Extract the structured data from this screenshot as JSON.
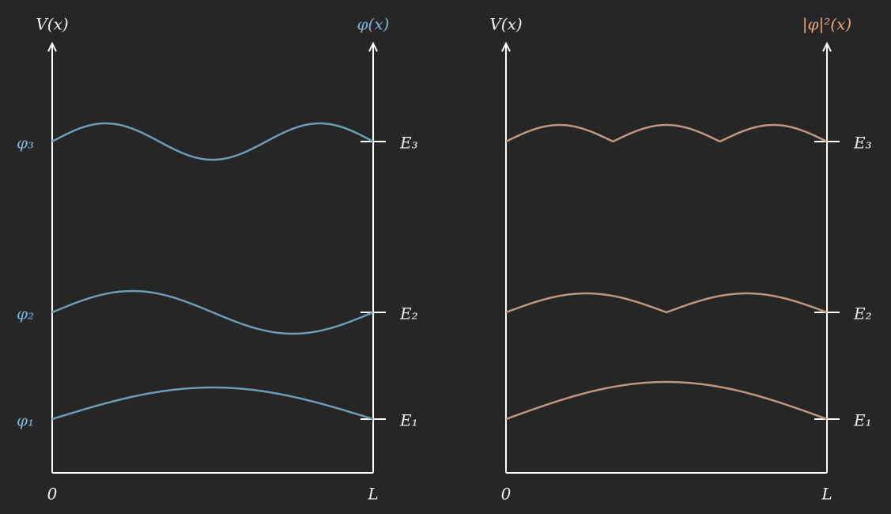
{
  "panels": [
    {
      "axis_left": "V(x)",
      "axis_right": "φ(x)",
      "x_start": "0",
      "x_end": "L",
      "levels": [
        "E₁",
        "E₂",
        "E₃"
      ],
      "states": [
        "φ₁",
        "φ₂",
        "φ₃"
      ]
    },
    {
      "axis_left": "V(x)",
      "axis_right": "|φ|²(x)",
      "x_start": "0",
      "x_end": "L",
      "levels": [
        "E₁",
        "E₂",
        "E₃"
      ]
    }
  ]
}
